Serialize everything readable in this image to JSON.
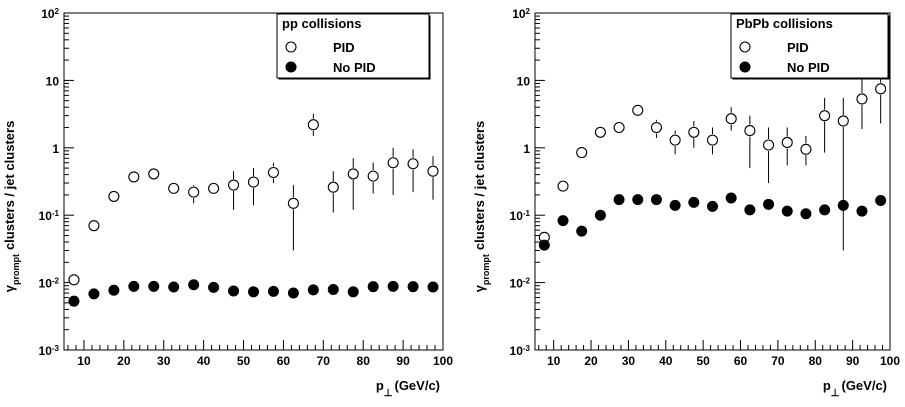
{
  "chart_data": [
    {
      "type": "scatter",
      "title": "",
      "xlabel": "p",
      "xlabel_subscript": "⊥",
      "xlabel_unit": "(GeV/c)",
      "ylabel_main": "clusters / jet clusters",
      "ylabel_gamma": "γ",
      "ylabel_subscript": "prompt",
      "xlim": [
        5,
        100
      ],
      "ylim": [
        0.001,
        100
      ],
      "yscale": "log",
      "x_ticks": [
        10,
        20,
        30,
        40,
        50,
        60,
        70,
        80,
        90,
        100
      ],
      "y_ticks": [
        {
          "value": 0.001,
          "base": "10",
          "exp": "-3"
        },
        {
          "value": 0.01,
          "base": "10",
          "exp": "-2"
        },
        {
          "value": 0.1,
          "base": "10",
          "exp": "-1"
        },
        {
          "value": 1,
          "base": "1",
          "exp": ""
        },
        {
          "value": 10,
          "base": "10",
          "exp": ""
        },
        {
          "value": 100,
          "base": "10",
          "exp": "2"
        }
      ],
      "legend": {
        "title": "pp collisions",
        "position": "top-right",
        "entries": [
          "PID",
          "No PID"
        ]
      },
      "series": [
        {
          "name": "PID",
          "marker": "open-circle",
          "x": [
            7.5,
            12.5,
            17.5,
            22.5,
            27.5,
            32.5,
            37.5,
            42.5,
            47.5,
            52.5,
            57.5,
            62.5,
            67.5,
            72.5,
            77.5,
            82.5,
            87.5,
            92.5,
            97.5
          ],
          "y": [
            0.011,
            0.07,
            0.19,
            0.37,
            0.41,
            0.25,
            0.22,
            0.25,
            0.28,
            0.31,
            0.43,
            0.15,
            2.2,
            0.26,
            0.41,
            0.38,
            0.6,
            0.58,
            0.45
          ],
          "y_low": [
            0.011,
            0.07,
            0.19,
            0.37,
            0.41,
            0.25,
            0.15,
            0.25,
            0.12,
            0.14,
            0.3,
            0.03,
            1.5,
            0.11,
            0.12,
            0.21,
            0.2,
            0.22,
            0.17
          ],
          "y_high": [
            0.011,
            0.07,
            0.19,
            0.37,
            0.41,
            0.25,
            0.28,
            0.25,
            0.45,
            0.5,
            0.6,
            0.28,
            3.2,
            0.45,
            0.7,
            0.6,
            1.0,
            0.95,
            0.75
          ]
        },
        {
          "name": "No PID",
          "marker": "filled-circle",
          "x": [
            7.5,
            12.5,
            17.5,
            22.5,
            27.5,
            32.5,
            37.5,
            42.5,
            47.5,
            52.5,
            57.5,
            62.5,
            67.5,
            72.5,
            77.5,
            82.5,
            87.5,
            92.5,
            97.5
          ],
          "y": [
            0.0053,
            0.0068,
            0.0077,
            0.0088,
            0.0088,
            0.0086,
            0.0093,
            0.0085,
            0.0075,
            0.0073,
            0.0074,
            0.007,
            0.0078,
            0.0079,
            0.0073,
            0.0087,
            0.0088,
            0.0087,
            0.0086
          ]
        }
      ]
    },
    {
      "type": "scatter",
      "title": "",
      "xlabel": "p",
      "xlabel_subscript": "⊥",
      "xlabel_unit": "(GeV/c)",
      "ylabel_main": "clusters / jet clusters",
      "ylabel_gamma": "γ",
      "ylabel_subscript": "prompt",
      "xlim": [
        5,
        100
      ],
      "ylim": [
        0.001,
        100
      ],
      "yscale": "log",
      "x_ticks": [
        10,
        20,
        30,
        40,
        50,
        60,
        70,
        80,
        90,
        100
      ],
      "y_ticks": [
        {
          "value": 0.001,
          "base": "10",
          "exp": "-3"
        },
        {
          "value": 0.01,
          "base": "10",
          "exp": "-2"
        },
        {
          "value": 0.1,
          "base": "10",
          "exp": "-1"
        },
        {
          "value": 1,
          "base": "1",
          "exp": ""
        },
        {
          "value": 10,
          "base": "10",
          "exp": ""
        },
        {
          "value": 100,
          "base": "10",
          "exp": "2"
        }
      ],
      "legend": {
        "title": "PbPb collisions",
        "position": "top-right",
        "entries": [
          "PID",
          "No PID"
        ]
      },
      "series": [
        {
          "name": "PID",
          "marker": "open-circle",
          "x": [
            7.5,
            12.5,
            17.5,
            22.5,
            27.5,
            32.5,
            37.5,
            42.5,
            47.5,
            52.5,
            57.5,
            62.5,
            67.5,
            72.5,
            77.5,
            82.5,
            87.5,
            92.5,
            97.5
          ],
          "y": [
            0.047,
            0.27,
            0.85,
            1.7,
            2.0,
            3.6,
            2.0,
            1.3,
            1.7,
            1.3,
            2.7,
            1.8,
            1.1,
            1.2,
            0.95,
            3.0,
            2.5,
            5.3,
            7.5
          ],
          "y_low": [
            0.047,
            0.27,
            0.85,
            1.7,
            2.0,
            3.6,
            1.4,
            0.8,
            1.0,
            0.8,
            1.8,
            0.5,
            0.3,
            0.55,
            0.55,
            0.85,
            0.03,
            1.9,
            2.3
          ],
          "y_high": [
            0.047,
            0.27,
            0.85,
            1.7,
            2.0,
            3.6,
            2.6,
            1.8,
            2.5,
            2.0,
            4.0,
            3.0,
            2.0,
            2.0,
            1.5,
            5.5,
            5.5,
            11.0,
            13.0
          ]
        },
        {
          "name": "No PID",
          "marker": "filled-circle",
          "x": [
            7.5,
            12.5,
            17.5,
            22.5,
            27.5,
            32.5,
            37.5,
            42.5,
            47.5,
            52.5,
            57.5,
            62.5,
            67.5,
            72.5,
            77.5,
            82.5,
            87.5,
            92.5,
            97.5
          ],
          "y": [
            0.036,
            0.083,
            0.058,
            0.1,
            0.17,
            0.17,
            0.17,
            0.14,
            0.155,
            0.135,
            0.18,
            0.12,
            0.145,
            0.115,
            0.105,
            0.12,
            0.14,
            0.115,
            0.165
          ]
        }
      ]
    }
  ]
}
